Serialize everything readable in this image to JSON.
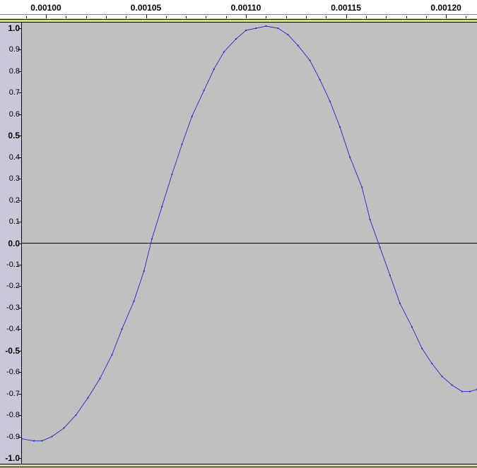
{
  "timeline": {
    "labels": [
      "0.00100",
      "0.00105",
      "0.00110",
      "0.00115",
      "0.00120"
    ],
    "label_times": [
      0.001,
      0.00105,
      0.0011,
      0.00115,
      0.0012
    ]
  },
  "amplitude_axis": {
    "labels": [
      "1.0",
      "0.9",
      "0.8",
      "0.7",
      "0.6",
      "0.5",
      "0.4",
      "0.3",
      "0.2",
      "0.1",
      "0.0",
      "-0.1",
      "-0.2",
      "-0.3",
      "-0.4",
      "-0.5",
      "-0.6",
      "-0.7",
      "-0.8",
      "-0.9",
      "-1.0"
    ],
    "values": [
      1.0,
      0.9,
      0.8,
      0.7,
      0.6,
      0.5,
      0.4,
      0.3,
      0.2,
      0.1,
      0.0,
      -0.1,
      -0.2,
      -0.3,
      -0.4,
      -0.5,
      -0.6,
      -0.7,
      -0.8,
      -0.9,
      -1.0
    ],
    "bold": [
      "1.0",
      "0.5",
      "0.0",
      "-0.5",
      "-1.0"
    ]
  },
  "waveform": {
    "color": "#3232c8",
    "time_range": [
      0.000988,
      0.0012155
    ],
    "amplitude_range": [
      -1.0,
      1.0
    ],
    "samples": [
      [
        0.000988,
        -0.91
      ],
      [
        0.000994,
        -0.92
      ],
      [
        0.000998,
        -0.92
      ],
      [
        0.001003,
        -0.9
      ],
      [
        0.001009,
        -0.86
      ],
      [
        0.001015,
        -0.8
      ],
      [
        0.001021,
        -0.72
      ],
      [
        0.001027,
        -0.63
      ],
      [
        0.001033,
        -0.52
      ],
      [
        0.001038,
        -0.4
      ],
      [
        0.001044,
        -0.27
      ],
      [
        0.001049,
        -0.13
      ],
      [
        0.001053,
        0.02
      ],
      [
        0.001058,
        0.17
      ],
      [
        0.001063,
        0.32
      ],
      [
        0.001068,
        0.46
      ],
      [
        0.001073,
        0.59
      ],
      [
        0.001079,
        0.71
      ],
      [
        0.001084,
        0.81
      ],
      [
        0.001089,
        0.89
      ],
      [
        0.001095,
        0.95
      ],
      [
        0.0011,
        0.99
      ],
      [
        0.001105,
        1.0
      ],
      [
        0.00111,
        1.01
      ],
      [
        0.001116,
        1.0
      ],
      [
        0.001121,
        0.97
      ],
      [
        0.001126,
        0.92
      ],
      [
        0.001132,
        0.85
      ],
      [
        0.001137,
        0.76
      ],
      [
        0.001142,
        0.66
      ],
      [
        0.001147,
        0.54
      ],
      [
        0.001152,
        0.4
      ],
      [
        0.001158,
        0.26
      ],
      [
        0.001162,
        0.11
      ],
      [
        0.001167,
        -0.02
      ],
      [
        0.001172,
        -0.15
      ],
      [
        0.001177,
        -0.28
      ],
      [
        0.001183,
        -0.39
      ],
      [
        0.001188,
        -0.49
      ],
      [
        0.001193,
        -0.56
      ],
      [
        0.001198,
        -0.62
      ],
      [
        0.001203,
        -0.66
      ],
      [
        0.001208,
        -0.69
      ],
      [
        0.001212,
        -0.69
      ],
      [
        0.0012155,
        -0.68
      ]
    ]
  }
}
